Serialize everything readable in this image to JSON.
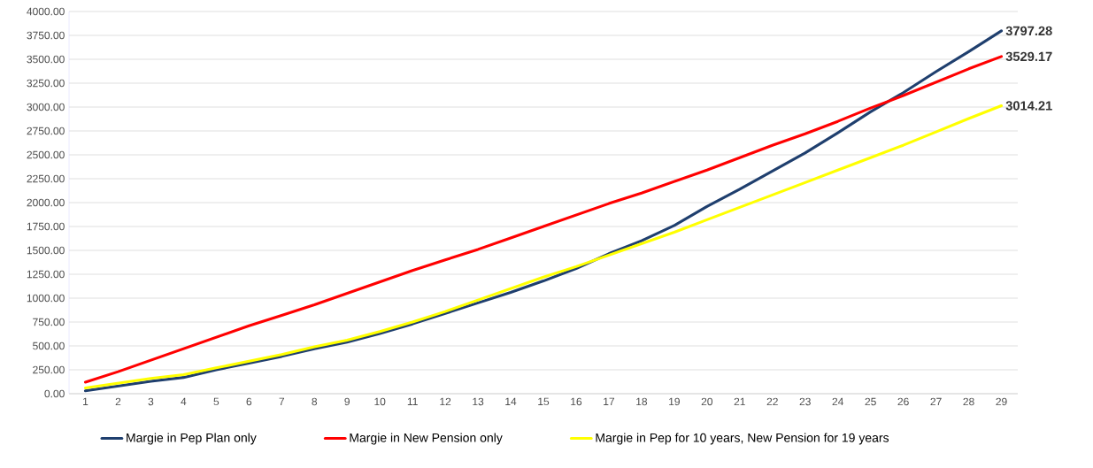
{
  "chart_data": {
    "type": "line",
    "categories": [
      "1",
      "2",
      "3",
      "4",
      "5",
      "6",
      "7",
      "8",
      "9",
      "10",
      "11",
      "12",
      "13",
      "14",
      "15",
      "16",
      "17",
      "18",
      "19",
      "20",
      "21",
      "22",
      "23",
      "24",
      "25",
      "26",
      "27",
      "28",
      "29"
    ],
    "series": [
      {
        "name": "Margie in Pep Plan only",
        "color": "#1f3f6e",
        "values": [
          30,
          80,
          130,
          170,
          250,
          320,
          390,
          470,
          540,
          630,
          730,
          840,
          950,
          1060,
          1180,
          1310,
          1465,
          1600,
          1760,
          1960,
          2140,
          2330,
          2520,
          2730,
          2950,
          3150,
          3370,
          3580,
          3797.28
        ],
        "value_labels": [
          null,
          null,
          null,
          null,
          null,
          null,
          null,
          null,
          null,
          null,
          null,
          null,
          null,
          null,
          null,
          null,
          null,
          null,
          null,
          null,
          null,
          null,
          null,
          null,
          null,
          null,
          null,
          null,
          "3797.28"
        ]
      },
      {
        "name": "Margie in New Pension only",
        "color": "#ff0000",
        "values": [
          120,
          230,
          350,
          470,
          590,
          710,
          820,
          930,
          1050,
          1170,
          1290,
          1400,
          1510,
          1630,
          1750,
          1870,
          1990,
          2100,
          2220,
          2340,
          2470,
          2600,
          2720,
          2850,
          2990,
          3120,
          3260,
          3400,
          3529.17
        ],
        "value_labels": [
          null,
          null,
          null,
          null,
          null,
          null,
          null,
          null,
          null,
          null,
          null,
          null,
          null,
          null,
          null,
          null,
          null,
          null,
          null,
          null,
          null,
          null,
          null,
          null,
          null,
          null,
          null,
          null,
          "3529.17"
        ]
      },
      {
        "name": "Margie in Pep for 10 years, New Pension for 19 years",
        "color": "#ffff00",
        "values": [
          60,
          110,
          160,
          200,
          270,
          340,
          410,
          490,
          560,
          650,
          750,
          860,
          980,
          1100,
          1220,
          1330,
          1450,
          1570,
          1690,
          1820,
          1950,
          2080,
          2210,
          2340,
          2470,
          2600,
          2740,
          2880,
          3014.21
        ],
        "value_labels": [
          null,
          null,
          null,
          null,
          null,
          null,
          null,
          null,
          null,
          null,
          null,
          null,
          null,
          null,
          null,
          null,
          null,
          null,
          null,
          null,
          null,
          null,
          null,
          null,
          null,
          null,
          null,
          null,
          "3014.21"
        ]
      }
    ],
    "ylim": [
      0,
      4000
    ],
    "yticks": [
      {
        "value": 0,
        "label": "0.00"
      },
      {
        "value": 250,
        "label": "250.00"
      },
      {
        "value": 500,
        "label": "500.00"
      },
      {
        "value": 750,
        "label": "750.00"
      },
      {
        "value": 1000,
        "label": "1000.00"
      },
      {
        "value": 1250,
        "label": "1250.00"
      },
      {
        "value": 1500,
        "label": "1500.00"
      },
      {
        "value": 1750,
        "label": "1750.00"
      },
      {
        "value": 2000,
        "label": "2000.00"
      },
      {
        "value": 2250,
        "label": "2250.00"
      },
      {
        "value": 2500,
        "label": "2500.00"
      },
      {
        "value": 2750,
        "label": "2750.00"
      },
      {
        "value": 3000,
        "label": "3000.00"
      },
      {
        "value": 3250,
        "label": "3250.00"
      },
      {
        "value": 3500,
        "label": "3500.00"
      },
      {
        "value": 3750,
        "label": "3750.00"
      },
      {
        "value": 4000,
        "label": "4000.00"
      }
    ],
    "grid": "y",
    "legend": "bottom"
  }
}
